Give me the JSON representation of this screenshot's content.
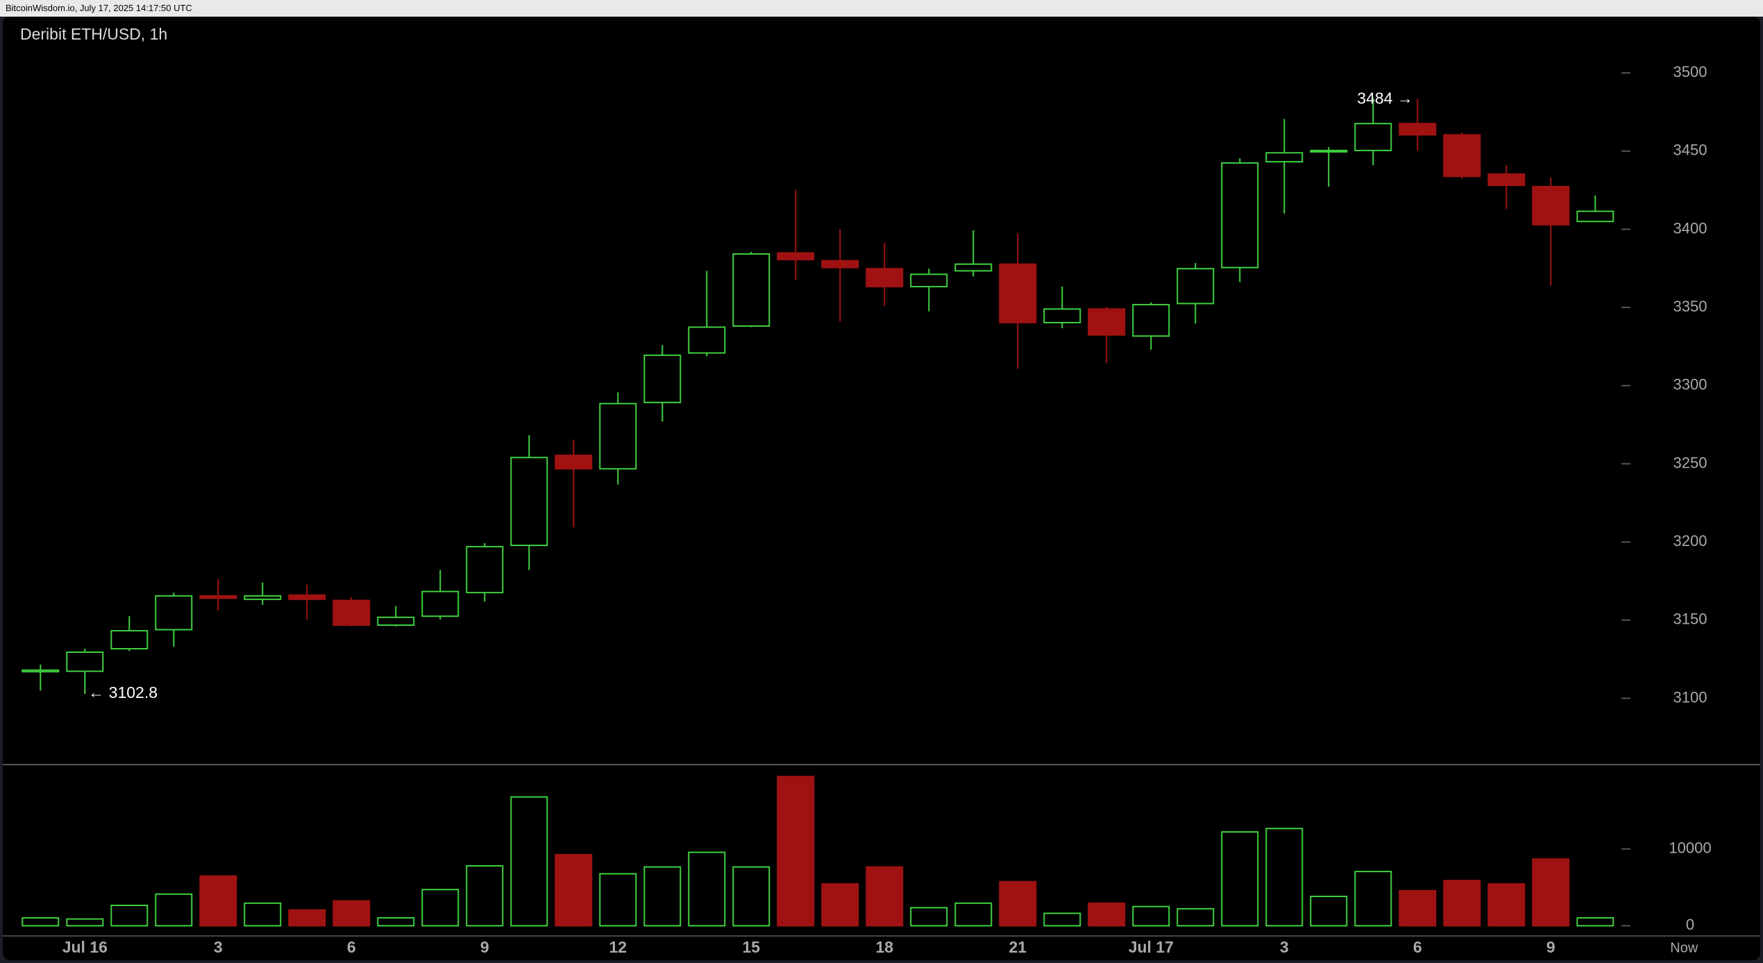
{
  "header": "BitcoinWisdom.io, July 17, 2025 14:17:50 UTC",
  "chart_data": [
    {
      "type": "candlestick",
      "title": "Deribit ETH/USD, 1h",
      "open": [
        3117,
        3117.3,
        3131.7,
        3143.9,
        3165.5,
        3163.3,
        3166,
        3162.6,
        3146.8,
        3152.5,
        3167.6,
        3197.8,
        3255.4,
        3246.8,
        3289.2,
        3320.9,
        3338.1,
        3384.9,
        3379.9,
        3374.8,
        3363.3,
        3373.4,
        3377.7,
        3340.3,
        3349,
        3331.7,
        3352.5,
        3375.5,
        3443.2,
        3449.6,
        3450.4,
        3467.6,
        3460.4,
        3435.3,
        3427.3,
        3405
      ],
      "high": [
        3121.6,
        3131.7,
        3152.5,
        3167.6,
        3176.3,
        3174,
        3172.7,
        3164.7,
        3159,
        3182,
        3199.3,
        3268.3,
        3265.5,
        3295.7,
        3326,
        3373.4,
        3385.6,
        3425.2,
        3400,
        3391.4,
        3374.8,
        3399.3,
        3397.1,
        3363.3,
        3350.4,
        3353.2,
        3378.4,
        3445.3,
        3470.5,
        3452.5,
        3484,
        3483.5,
        3461.9,
        3441,
        3433.1,
        3421.6
      ],
      "low": [
        3105,
        3102.8,
        3130.2,
        3133,
        3156,
        3159.7,
        3150.4,
        3146,
        3146,
        3150.4,
        3161.9,
        3182,
        3209.4,
        3236.7,
        3277,
        3318.7,
        3337.4,
        3367.6,
        3341,
        3351,
        3347.5,
        3369.8,
        3310.8,
        3336.7,
        3314.4,
        3323,
        3339.6,
        3366.2,
        3410.1,
        3427.3,
        3441,
        3450.4,
        3432.4,
        3413,
        3364,
        3405
      ],
      "close": [
        3118,
        3129.5,
        3143.2,
        3165.5,
        3164,
        3165.5,
        3163.3,
        3146.8,
        3151.8,
        3168.3,
        3197,
        3254,
        3246.8,
        3288.5,
        3319.4,
        3337.4,
        3384.2,
        3380.6,
        3375.5,
        3363.3,
        3371.2,
        3377.7,
        3340.3,
        3349,
        3332.4,
        3351.8,
        3374.8,
        3442.4,
        3448.9,
        3450.4,
        3467.6,
        3460.4,
        3433.8,
        3428.1,
        3402.9,
        3411.5
      ],
      "up_color": "#3fd13f",
      "down_color": "#a01212",
      "max_label": "3484 →",
      "min_label": "← 3102.8",
      "ylim": [
        3057.6,
        3536
      ],
      "yticks": [
        3100,
        3150,
        3200,
        3250,
        3300,
        3350,
        3400,
        3450,
        3500
      ]
    },
    {
      "type": "bar",
      "categories": [
        null,
        "Jul 16",
        null,
        null,
        "3",
        null,
        null,
        "6",
        null,
        null,
        "9",
        null,
        null,
        "12",
        null,
        null,
        "15",
        null,
        null,
        "18",
        null,
        null,
        "21",
        null,
        null,
        "Jul 17",
        null,
        null,
        "3",
        null,
        null,
        "6",
        null,
        null,
        "9",
        null
      ],
      "values": [
        1030,
        880,
        2650,
        4120,
        6470,
        2940,
        2060,
        3240,
        1030,
        4710,
        7790,
        16760,
        9260,
        6760,
        7650,
        9560,
        7650,
        19410,
        5440,
        7650,
        2350,
        2940,
        5740,
        1620,
        2940,
        2500,
        2210,
        12210,
        12650,
        3820,
        7060,
        4560,
        5880,
        5440,
        8680,
        1030
      ],
      "now_label": "Now",
      "ylim": [
        -1324,
        20882
      ],
      "yticks": [
        0,
        10000
      ]
    }
  ]
}
